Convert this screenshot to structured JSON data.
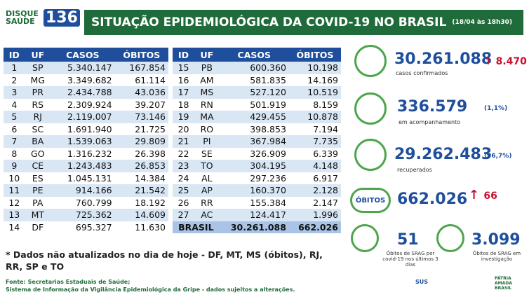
{
  "logo": {
    "line1": "DISQUE",
    "line2": "SAÚDE",
    "number": "136"
  },
  "header": {
    "title": "SITUAÇÃO EPIDEMIOLÓGICA DA COVID-19 NO BRASIL",
    "date": "(18/04 às 18h30)"
  },
  "table": {
    "columns": [
      "ID",
      "UF",
      "CASOS",
      "ÓBITOS"
    ],
    "rows": [
      [
        "1",
        "SP",
        "5.340.147",
        "167.854"
      ],
      [
        "2",
        "MG",
        "3.349.682",
        "61.114"
      ],
      [
        "3",
        "PR",
        "2.434.788",
        "43.036"
      ],
      [
        "4",
        "RS",
        "2.309.924",
        "39.207"
      ],
      [
        "5",
        "RJ",
        "2.119.007",
        "73.146"
      ],
      [
        "6",
        "SC",
        "1.691.940",
        "21.725"
      ],
      [
        "7",
        "BA",
        "1.539.063",
        "29.809"
      ],
      [
        "8",
        "GO",
        "1.316.232",
        "26.398"
      ],
      [
        "9",
        "CE",
        "1.243.483",
        "26.853"
      ],
      [
        "10",
        "ES",
        "1.045.131",
        "14.384"
      ],
      [
        "11",
        "PE",
        "914.166",
        "21.542"
      ],
      [
        "12",
        "PA",
        "760.799",
        "18.192"
      ],
      [
        "13",
        "MT",
        "725.362",
        "14.609"
      ],
      [
        "14",
        "DF",
        "695.327",
        "11.630"
      ],
      [
        "15",
        "PB",
        "600.360",
        "10.198"
      ],
      [
        "16",
        "AM",
        "581.835",
        "14.169"
      ],
      [
        "17",
        "MS",
        "527.120",
        "10.519"
      ],
      [
        "18",
        "RN",
        "501.919",
        "8.159"
      ],
      [
        "19",
        "MA",
        "429.455",
        "10.878"
      ],
      [
        "20",
        "RO",
        "398.853",
        "7.194"
      ],
      [
        "21",
        "PI",
        "367.984",
        "7.735"
      ],
      [
        "22",
        "SE",
        "326.909",
        "6.339"
      ],
      [
        "23",
        "TO",
        "304.195",
        "4.148"
      ],
      [
        "24",
        "AL",
        "297.236",
        "6.917"
      ],
      [
        "25",
        "AP",
        "160.370",
        "2.128"
      ],
      [
        "26",
        "RR",
        "155.384",
        "2.147"
      ],
      [
        "27",
        "AC",
        "124.417",
        "1.996"
      ]
    ],
    "total": [
      "BRASIL",
      "30.261.088",
      "662.026"
    ]
  },
  "stats": {
    "confirmed": {
      "value": "30.261.088",
      "new": "8.470",
      "label": "casos confirmados"
    },
    "monitoring": {
      "value": "336.579",
      "pct": "(1,1%)",
      "label": "em acompanhamento"
    },
    "recovered": {
      "value": "29.262.483",
      "pct": "(96,7%)",
      "label": "recuperados"
    },
    "deaths": {
      "badge": "ÓBITOS",
      "value": "662.026",
      "new": "66"
    },
    "srag_recent": {
      "value": "51",
      "label": "Óbitos de SRAG por covid-19 nos últimos 3 dias"
    },
    "srag_investigation": {
      "value": "3.099",
      "label": "Óbitos de SRAG em investigação"
    }
  },
  "note": "* Dados não atualizados no dia de hoje - DF, MT, MS (óbitos), RJ, RR, SP e TO",
  "sources": [
    "Fonte: Secretarias Estaduais de Saúde;",
    "Sistema de Informação da Vigilância Epidemiológica da Gripe - dados sujeitos a alterações."
  ],
  "footer": {
    "sus": "SUS",
    "brand": "PÁTRIA AMADA BRASIL"
  }
}
